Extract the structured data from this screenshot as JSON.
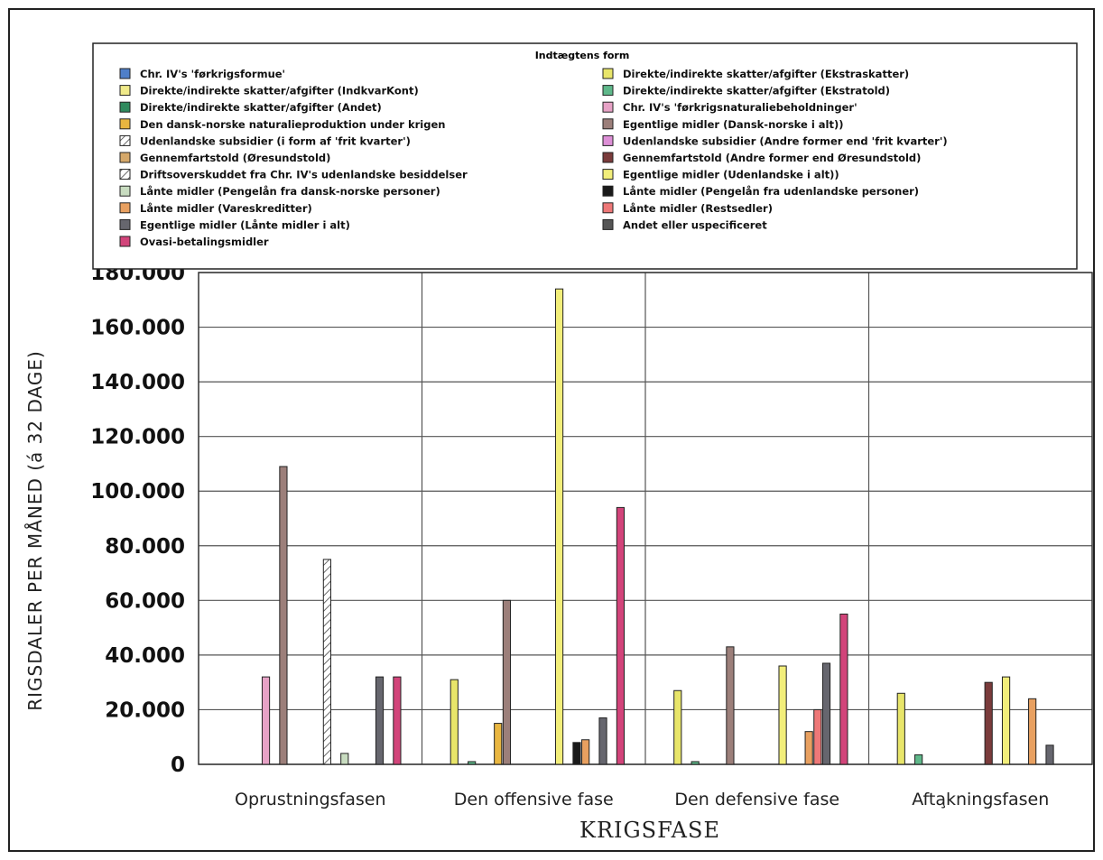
{
  "chart_data": {
    "type": "bar",
    "xlabel": "KRIGSFASE",
    "ylabel": "RIGSDALER PER MÅNED (á 32 DAGE)",
    "ylim": [
      0,
      180000
    ],
    "y_ticks": [
      "0",
      "20.000",
      "40.000",
      "60.000",
      "80.000",
      "100.000",
      "120.000",
      "140.000",
      "160.000",
      "180.000"
    ],
    "grid": true,
    "legend_title": "Indtægtens form",
    "legend_position": "top",
    "categories": [
      "Oprustningsfasen",
      "Den offensive fase",
      "Den defensive fase",
      "Afta̧kningsfasen"
    ],
    "series": [
      {
        "name": "Chr. IV's 'førkrigsformue'",
        "color": "#4f7fc9",
        "values": [
          0,
          0,
          0,
          0
        ]
      },
      {
        "name": "Direkte/indirekte skatter/afgifter (Ekstraskatter)",
        "color": "#e8e56a",
        "values": [
          0,
          31000,
          27000,
          26000
        ]
      },
      {
        "name": "Direkte/indirekte skatter/afgifter (IndkvarKont)",
        "color": "#f0ea8a",
        "values": [
          0,
          0,
          0,
          0
        ]
      },
      {
        "name": "Direkte/indirekte skatter/afgifter (Ekstratold)",
        "color": "#5fb88a",
        "values": [
          0,
          1000,
          1000,
          3500
        ]
      },
      {
        "name": "Direkte/indirekte skatter/afgifter (Andet)",
        "color": "#2f8a5e",
        "values": [
          0,
          0,
          0,
          0
        ]
      },
      {
        "name": "Chr. IV's 'førkrigsnaturaliebeholdninger'",
        "color": "#e7a2c6",
        "values": [
          32000,
          0,
          0,
          0
        ]
      },
      {
        "name": "Den dansk-norske naturalieproduktion under krigen",
        "color": "#e9b640",
        "values": [
          0,
          15000,
          0,
          0
        ]
      },
      {
        "name": "Egentlige midler (Dansk-norske i alt))",
        "color": "#9c7f7a",
        "values": [
          109000,
          60000,
          43000,
          0
        ]
      },
      {
        "name": "Udenlandske subsidier (i form af 'frit kvarter')",
        "color": "#ffffff",
        "values": [
          0,
          0,
          0,
          0
        ]
      },
      {
        "name": "Udenlandske subsidier (Andre former end 'frit kvarter')",
        "color": "#dd8fd6",
        "values": [
          0,
          0,
          0,
          0
        ]
      },
      {
        "name": "Gennemfartstold (Øresundstold)",
        "color": "#d5a86a",
        "values": [
          0,
          0,
          0,
          0
        ]
      },
      {
        "name": "Gennemfartstold (Andre former end Øresundstold)",
        "color": "#7a3b3b",
        "values": [
          0,
          0,
          0,
          30000
        ]
      },
      {
        "name": "Driftsoverskuddet fra Chr. IV's udenlandske besiddelser",
        "color": "#ffffff",
        "values": [
          75000,
          0,
          0,
          0
        ]
      },
      {
        "name": "Egentlige midler (Udenlandske i alt))",
        "color": "#f2ee7a",
        "values": [
          0,
          174000,
          36000,
          32000
        ]
      },
      {
        "name": "Lånte midler (Pengelån fra dansk-norske personer)",
        "color": "#c8dcc0",
        "values": [
          4000,
          0,
          0,
          0
        ]
      },
      {
        "name": "Lånte midler (Pengelån fra udenlandske personer)",
        "color": "#1a1a1a",
        "values": [
          0,
          8000,
          0,
          0
        ]
      },
      {
        "name": "Lånte midler (Vareskreditter)",
        "color": "#e8a060",
        "values": [
          0,
          9000,
          12000,
          24000
        ]
      },
      {
        "name": "Lånte midler (Restsedler)",
        "color": "#ee7878",
        "values": [
          0,
          0,
          20000,
          0
        ]
      },
      {
        "name": "Egentlige midler (Lånte midler i alt)",
        "color": "#66666e",
        "values": [
          32000,
          17000,
          37000,
          7000
        ]
      },
      {
        "name": "Andet eller uspecificeret",
        "color": "#555555",
        "values": [
          0,
          0,
          0,
          0
        ]
      },
      {
        "name": "Ovasi-betalingsmidler",
        "color": "#d2447a",
        "values": [
          32000,
          94000,
          55000,
          0
        ]
      }
    ]
  }
}
